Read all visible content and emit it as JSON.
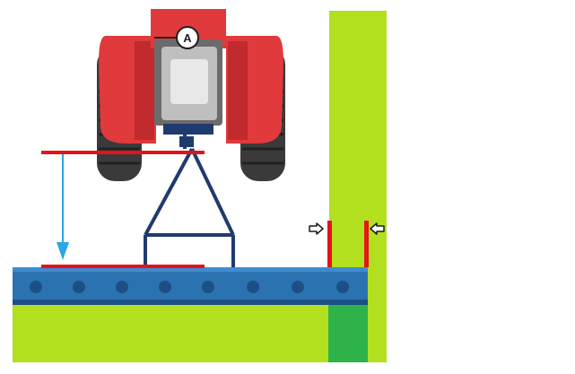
{
  "diagram": {
    "tractor_label": "A",
    "colors": {
      "background": "#ffffff",
      "field_green": "#b2e01e",
      "track_green": "#2fb24a",
      "boom_blue": "#2b72b0",
      "boom_dark": "#1d4f86",
      "hitch_navy": "#1f3b6e",
      "tractor_red": "#e03a3c",
      "tractor_red_dark": "#c12a2e",
      "tire": "#3a3a3a",
      "cab_grey": "#bfbfbf",
      "cab_light": "#e8e8e8",
      "marker_red": "#e3131b",
      "arrow_blue": "#2aa7e6"
    },
    "icons": {
      "drop_arrow": "down-arrow-icon",
      "left_pointer": "right-pointing-arrow-icon",
      "right_pointer": "left-pointing-arrow-icon"
    }
  }
}
